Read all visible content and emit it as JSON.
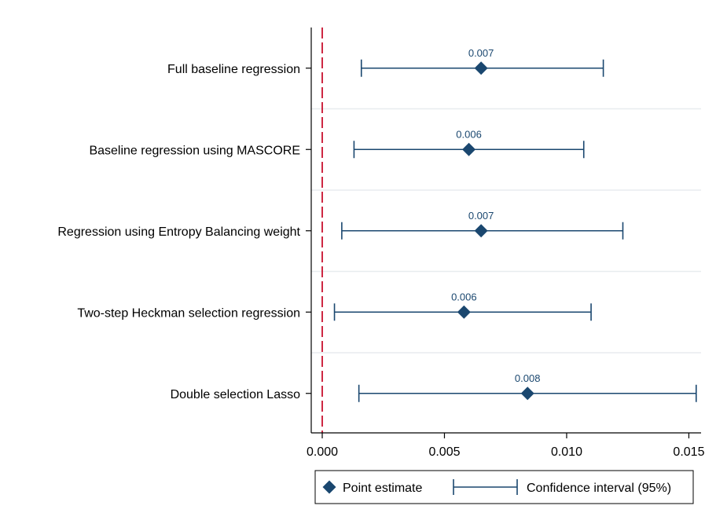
{
  "chart_data": {
    "type": "coefficient-plot",
    "orientation": "horizontal",
    "categories": [
      "Full baseline regression",
      "Baseline regression using MASCORE",
      "Regression using Entropy Balancing weight",
      "Two-step Heckman selection regression",
      "Double selection Lasso"
    ],
    "series": [
      {
        "point_estimates": [
          0.0065,
          0.006,
          0.0065,
          0.0058,
          0.0084
        ],
        "ci_lower": [
          0.0016,
          0.0013,
          0.0008,
          0.0005,
          0.0015
        ],
        "ci_upper": [
          0.0115,
          0.0107,
          0.0123,
          0.011,
          0.0153
        ],
        "data_labels": [
          "0.007",
          "0.006",
          "0.007",
          "0.006",
          "0.008"
        ]
      }
    ],
    "xlim": [
      -0.00045,
      0.0155
    ],
    "x_ticks": [
      0.0,
      0.005,
      0.01,
      0.015
    ],
    "x_tick_labels": [
      "0.000",
      "0.005",
      "0.010",
      "0.015"
    ],
    "reference_line": {
      "x": 0.0,
      "style": "dashed",
      "color": "#c8102e"
    },
    "legend": {
      "position": "bottom",
      "entries": [
        "Point estimate",
        "Confidence interval (95%)"
      ]
    },
    "grid": "horizontal",
    "colors": {
      "marker": "#1a476f",
      "grid": "#e8ecef",
      "axis": "#000000"
    }
  }
}
